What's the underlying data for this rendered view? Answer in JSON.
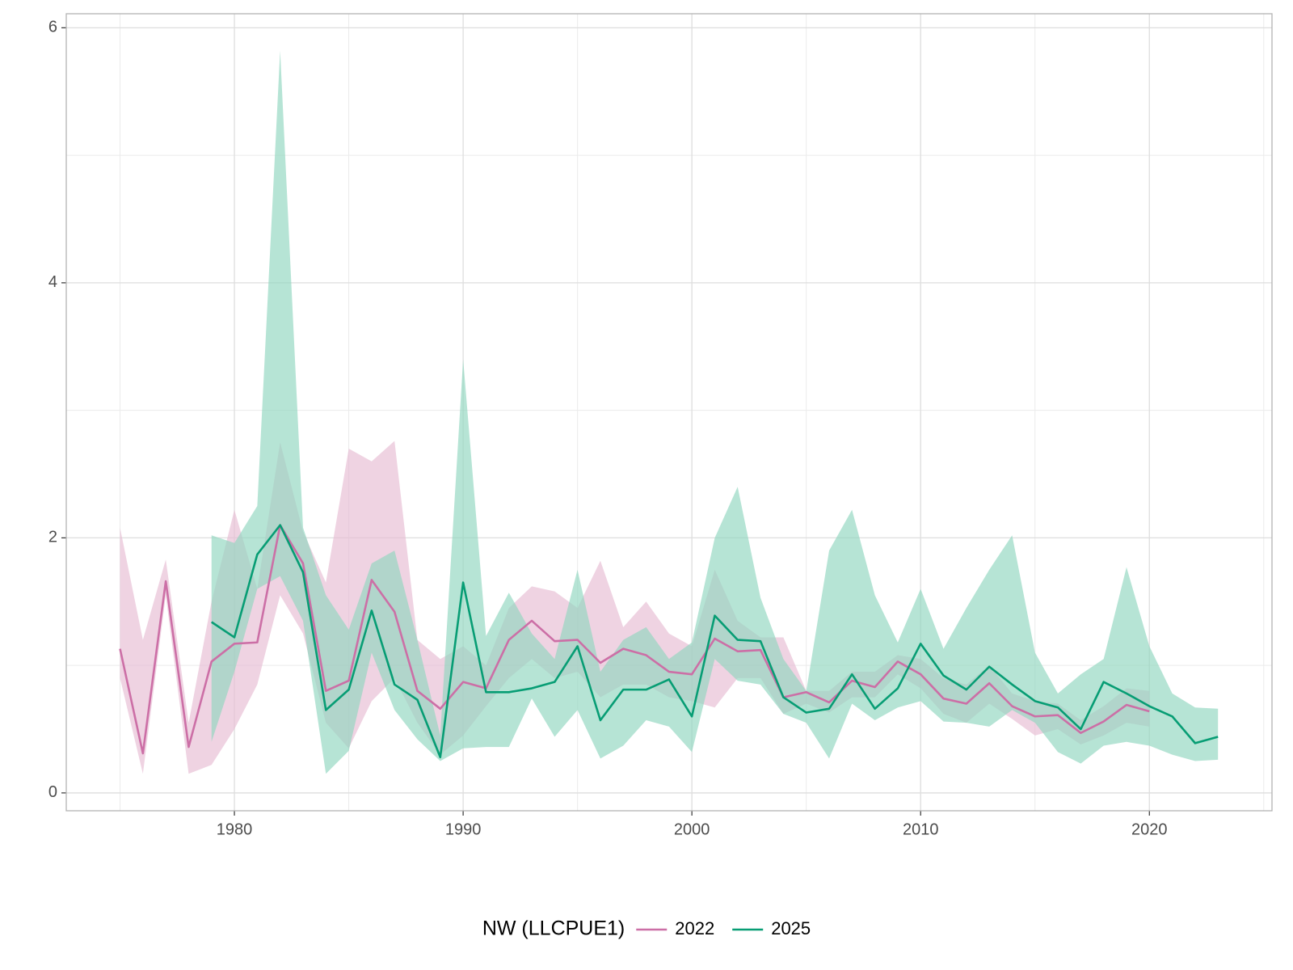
{
  "chart_data": {
    "type": "line-band",
    "legend_title": "NW (LLCPUE1)",
    "legend_position": "bottom",
    "grid": true,
    "xlim": [
      1972.65,
      2025.36
    ],
    "xticks": [
      1980,
      1990,
      2000,
      2010,
      2020
    ],
    "ylim": [
      -0.14,
      6.11
    ],
    "yticks": [
      0,
      2,
      4,
      6
    ],
    "series": [
      {
        "name": "2022",
        "color": "#cc6fa6",
        "band_color": "#e6bcd2",
        "x": [
          1975,
          1976,
          1977,
          1978,
          1979,
          1980,
          1981,
          1982,
          1983,
          1984,
          1985,
          1986,
          1987,
          1988,
          1989,
          1990,
          1991,
          1992,
          1993,
          1994,
          1995,
          1996,
          1997,
          1998,
          1999,
          2000,
          2001,
          2002,
          2003,
          2004,
          2005,
          2006,
          2007,
          2008,
          2009,
          2010,
          2011,
          2012,
          2013,
          2014,
          2015,
          2016,
          2017,
          2018,
          2019,
          2020
        ],
        "values": [
          1.13,
          0.31,
          1.66,
          0.36,
          1.03,
          1.17,
          1.18,
          2.1,
          1.8,
          0.8,
          0.88,
          1.67,
          1.42,
          0.8,
          0.66,
          0.87,
          0.82,
          1.2,
          1.35,
          1.19,
          1.2,
          1.02,
          1.13,
          1.08,
          0.95,
          0.93,
          1.21,
          1.11,
          1.12,
          0.75,
          0.79,
          0.71,
          0.88,
          0.83,
          1.03,
          0.93,
          0.74,
          0.7,
          0.86,
          0.68,
          0.6,
          0.61,
          0.47,
          0.56,
          0.69,
          0.64
        ],
        "lower": [
          0.9,
          0.15,
          1.55,
          0.15,
          0.22,
          0.5,
          0.85,
          1.55,
          1.25,
          0.55,
          0.35,
          0.72,
          0.9,
          0.55,
          0.3,
          0.45,
          0.68,
          0.9,
          1.05,
          0.9,
          0.95,
          0.75,
          0.85,
          0.85,
          0.75,
          0.72,
          0.67,
          0.9,
          0.9,
          0.62,
          0.7,
          0.63,
          0.75,
          0.75,
          0.93,
          0.82,
          0.62,
          0.55,
          0.7,
          0.58,
          0.45,
          0.5,
          0.38,
          0.45,
          0.55,
          0.52
        ],
        "upper": [
          2.08,
          1.2,
          1.83,
          0.55,
          1.5,
          2.22,
          1.6,
          2.75,
          2.05,
          1.65,
          2.7,
          2.6,
          2.76,
          1.2,
          1.05,
          1.15,
          1.0,
          1.45,
          1.62,
          1.58,
          1.45,
          1.82,
          1.3,
          1.5,
          1.25,
          1.15,
          1.75,
          1.35,
          1.22,
          1.22,
          0.8,
          0.8,
          0.95,
          0.95,
          1.08,
          1.05,
          0.9,
          0.85,
          1.0,
          0.78,
          0.72,
          0.7,
          0.57,
          0.68,
          0.82,
          0.8
        ]
      },
      {
        "name": "2025",
        "color": "#079d74",
        "band_color": "#8fd6bf",
        "x": [
          1979,
          1980,
          1981,
          1982,
          1983,
          1984,
          1985,
          1986,
          1987,
          1988,
          1989,
          1990,
          1991,
          1992,
          1993,
          1994,
          1995,
          1996,
          1997,
          1998,
          1999,
          2000,
          2001,
          2002,
          2003,
          2004,
          2005,
          2006,
          2007,
          2008,
          2009,
          2010,
          2011,
          2012,
          2013,
          2014,
          2015,
          2016,
          2017,
          2018,
          2019,
          2020,
          2021,
          2022,
          2023
        ],
        "values": [
          1.34,
          1.22,
          1.87,
          2.1,
          1.73,
          0.65,
          0.81,
          1.43,
          0.85,
          0.73,
          0.28,
          1.65,
          0.79,
          0.79,
          0.82,
          0.87,
          1.15,
          0.57,
          0.81,
          0.81,
          0.89,
          0.6,
          1.39,
          1.2,
          1.19,
          0.75,
          0.63,
          0.66,
          0.93,
          0.66,
          0.82,
          1.17,
          0.92,
          0.81,
          0.99,
          0.85,
          0.72,
          0.67,
          0.5,
          0.87,
          0.78,
          0.68,
          0.6,
          0.39,
          0.44
        ],
        "lower": [
          0.4,
          0.95,
          1.6,
          1.7,
          1.35,
          0.15,
          0.33,
          1.1,
          0.65,
          0.42,
          0.25,
          0.35,
          0.36,
          0.36,
          0.74,
          0.44,
          0.65,
          0.27,
          0.37,
          0.57,
          0.52,
          0.32,
          1.05,
          0.88,
          0.85,
          0.62,
          0.55,
          0.27,
          0.7,
          0.57,
          0.67,
          0.72,
          0.56,
          0.55,
          0.52,
          0.65,
          0.55,
          0.32,
          0.23,
          0.37,
          0.4,
          0.37,
          0.3,
          0.25,
          0.26
        ],
        "upper": [
          2.02,
          1.96,
          2.25,
          5.82,
          2.08,
          1.55,
          1.28,
          1.8,
          1.9,
          1.2,
          0.45,
          3.4,
          1.23,
          1.57,
          1.25,
          1.05,
          1.75,
          0.95,
          1.2,
          1.3,
          1.05,
          1.18,
          2.0,
          2.4,
          1.53,
          1.05,
          0.8,
          1.9,
          2.22,
          1.55,
          1.18,
          1.6,
          1.13,
          1.45,
          1.75,
          2.02,
          1.1,
          0.78,
          0.93,
          1.05,
          1.77,
          1.15,
          0.78,
          0.67,
          0.66
        ]
      }
    ]
  }
}
